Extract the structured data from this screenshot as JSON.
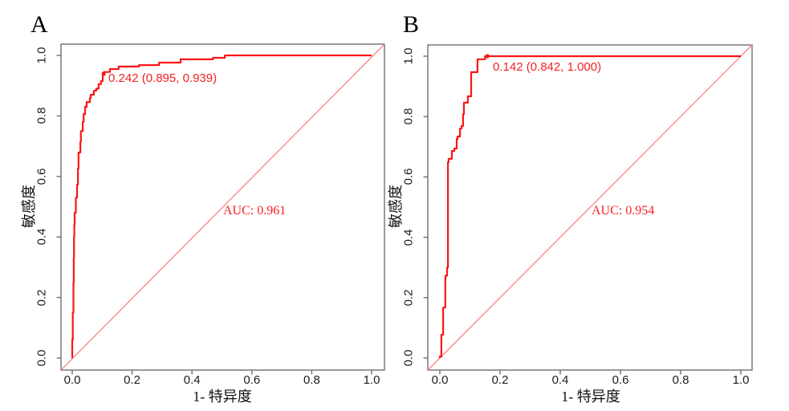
{
  "colors": {
    "roc_curve": "#fa1616",
    "reference_diagonal": "#fb8282",
    "red_text": "#f52020",
    "frame": "#6e6e6e",
    "tick_text": "#1c1c1c",
    "panel_letter": "#000000"
  },
  "chart_data": [
    {
      "type": "line",
      "panel": "A",
      "subtype": "ROC curve (step)",
      "xlabel": "1- 特异度",
      "ylabel": "敏感度",
      "xlim": [
        0,
        1
      ],
      "ylim": [
        0,
        1
      ],
      "grid": false,
      "x_ticks": [
        "0.0",
        "0.2",
        "0.4",
        "0.6",
        "0.8",
        "1.0"
      ],
      "y_ticks": [
        "0.0",
        "0.2",
        "0.4",
        "0.6",
        "0.8",
        "1.0"
      ],
      "series": [
        {
          "name": "ROC curve",
          "color": "#fa1616",
          "style": "step",
          "points": [
            [
              0.0,
              0.0
            ],
            [
              0.002,
              0.06
            ],
            [
              0.004,
              0.15
            ],
            [
              0.005,
              0.25
            ],
            [
              0.006,
              0.33
            ],
            [
              0.007,
              0.4
            ],
            [
              0.008,
              0.44
            ],
            [
              0.012,
              0.48
            ],
            [
              0.016,
              0.53
            ],
            [
              0.019,
              0.573
            ],
            [
              0.021,
              0.626
            ],
            [
              0.027,
              0.679
            ],
            [
              0.029,
              0.714
            ],
            [
              0.035,
              0.75
            ],
            [
              0.038,
              0.78
            ],
            [
              0.043,
              0.806
            ],
            [
              0.048,
              0.83
            ],
            [
              0.059,
              0.846
            ],
            [
              0.062,
              0.86
            ],
            [
              0.072,
              0.87
            ],
            [
              0.08,
              0.883
            ],
            [
              0.088,
              0.89
            ],
            [
              0.096,
              0.905
            ],
            [
              0.102,
              0.915
            ],
            [
              0.105,
              0.939
            ],
            [
              0.126,
              0.945
            ],
            [
              0.155,
              0.955
            ],
            [
              0.223,
              0.963
            ],
            [
              0.29,
              0.968
            ],
            [
              0.362,
              0.976
            ],
            [
              0.47,
              0.987
            ],
            [
              0.51,
              0.992
            ],
            [
              0.555,
              1.0
            ],
            [
              1.0,
              1.0
            ]
          ]
        },
        {
          "name": "reference diagonal",
          "color": "#fb8282",
          "style": "straight",
          "points": [
            [
              0,
              0
            ],
            [
              1,
              1
            ]
          ]
        }
      ],
      "annotations": {
        "best_threshold": {
          "text": "0.242 (0.895, 0.939)",
          "threshold": 0.242,
          "specificity": 0.895,
          "sensitivity": 0.939,
          "x": 0.105,
          "y": 0.939
        },
        "auc": {
          "text": "AUC: 0.961",
          "value": 0.961
        }
      }
    },
    {
      "type": "line",
      "panel": "B",
      "subtype": "ROC curve (step)",
      "xlabel": "1- 特异度",
      "ylabel": "敏感度",
      "xlim": [
        0,
        1
      ],
      "ylim": [
        0,
        1
      ],
      "grid": false,
      "x_ticks": [
        "0.0",
        "0.2",
        "0.4",
        "0.6",
        "0.8",
        "1.0"
      ],
      "y_ticks": [
        "0.0",
        "0.2",
        "0.4",
        "0.6",
        "0.8",
        "1.0"
      ],
      "series": [
        {
          "name": "ROC curve",
          "color": "#fa1616",
          "style": "step",
          "points": [
            [
              0.0,
              0.0
            ],
            [
              0.005,
              0.005
            ],
            [
              0.005,
              0.069
            ],
            [
              0.011,
              0.077
            ],
            [
              0.011,
              0.162
            ],
            [
              0.018,
              0.167
            ],
            [
              0.019,
              0.26
            ],
            [
              0.024,
              0.273
            ],
            [
              0.027,
              0.3
            ],
            [
              0.029,
              0.649
            ],
            [
              0.04,
              0.66
            ],
            [
              0.048,
              0.686
            ],
            [
              0.056,
              0.694
            ],
            [
              0.059,
              0.726
            ],
            [
              0.067,
              0.734
            ],
            [
              0.072,
              0.76
            ],
            [
              0.077,
              0.769
            ],
            [
              0.077,
              0.8
            ],
            [
              0.08,
              0.808
            ],
            [
              0.08,
              0.835
            ],
            [
              0.093,
              0.846
            ],
            [
              0.093,
              0.862
            ],
            [
              0.104,
              0.867
            ],
            [
              0.104,
              0.941
            ],
            [
              0.125,
              0.947
            ],
            [
              0.125,
              0.987
            ],
            [
              0.15,
              0.99
            ],
            [
              0.158,
              1.0
            ],
            [
              1.0,
              1.0
            ]
          ]
        },
        {
          "name": "reference diagonal",
          "color": "#fb8282",
          "style": "straight",
          "points": [
            [
              0,
              0
            ],
            [
              1,
              1
            ]
          ]
        }
      ],
      "annotations": {
        "best_threshold": {
          "text": "0.142 (0.842, 1.000)",
          "threshold": 0.142,
          "specificity": 0.842,
          "sensitivity": 1.0,
          "x": 0.158,
          "y": 1.0
        },
        "auc": {
          "text": "AUC: 0.954",
          "value": 0.954
        }
      }
    }
  ]
}
